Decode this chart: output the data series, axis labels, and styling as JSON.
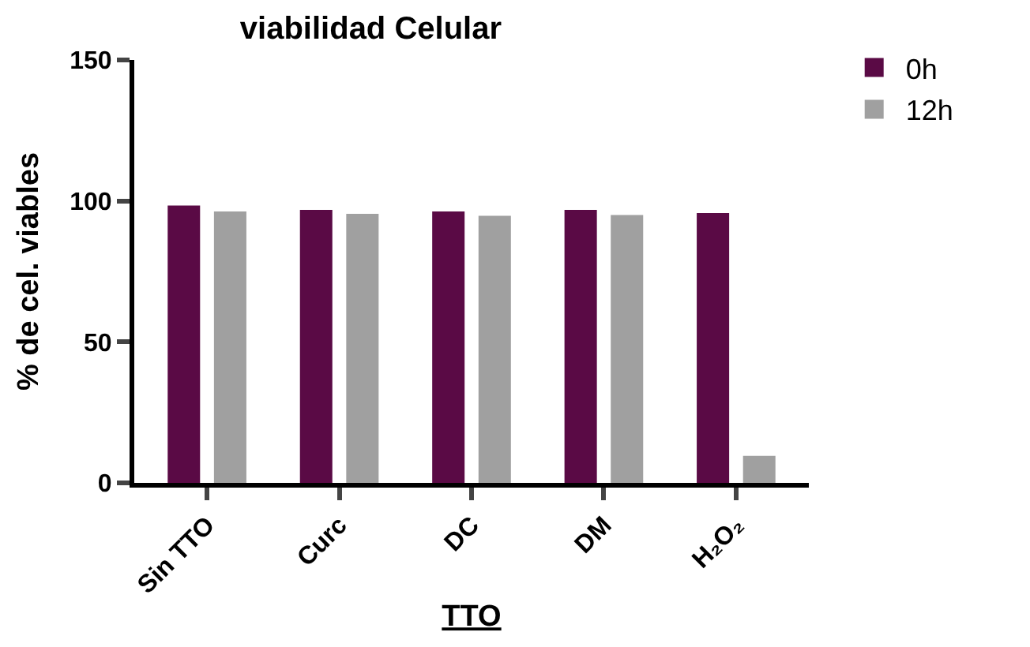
{
  "chart_data": {
    "type": "bar",
    "title": "viabilidad Celular",
    "xlabel": "TTO",
    "ylabel": "% de cel. viables",
    "categories": [
      "Sin TTO",
      "Curc",
      "DC",
      "DM",
      "H₂O₂"
    ],
    "series": [
      {
        "name": "0h",
        "color": "#5a0a45",
        "values": [
          98.4,
          96.8,
          96.3,
          96.8,
          95.7
        ]
      },
      {
        "name": "12h",
        "color": "#a0a0a0",
        "values": [
          96.3,
          95.4,
          94.7,
          95,
          9.6
        ]
      }
    ],
    "ylim": [
      0,
      150
    ],
    "yticks": [
      0,
      50,
      100,
      150
    ],
    "grid": false,
    "legend": "top right"
  }
}
